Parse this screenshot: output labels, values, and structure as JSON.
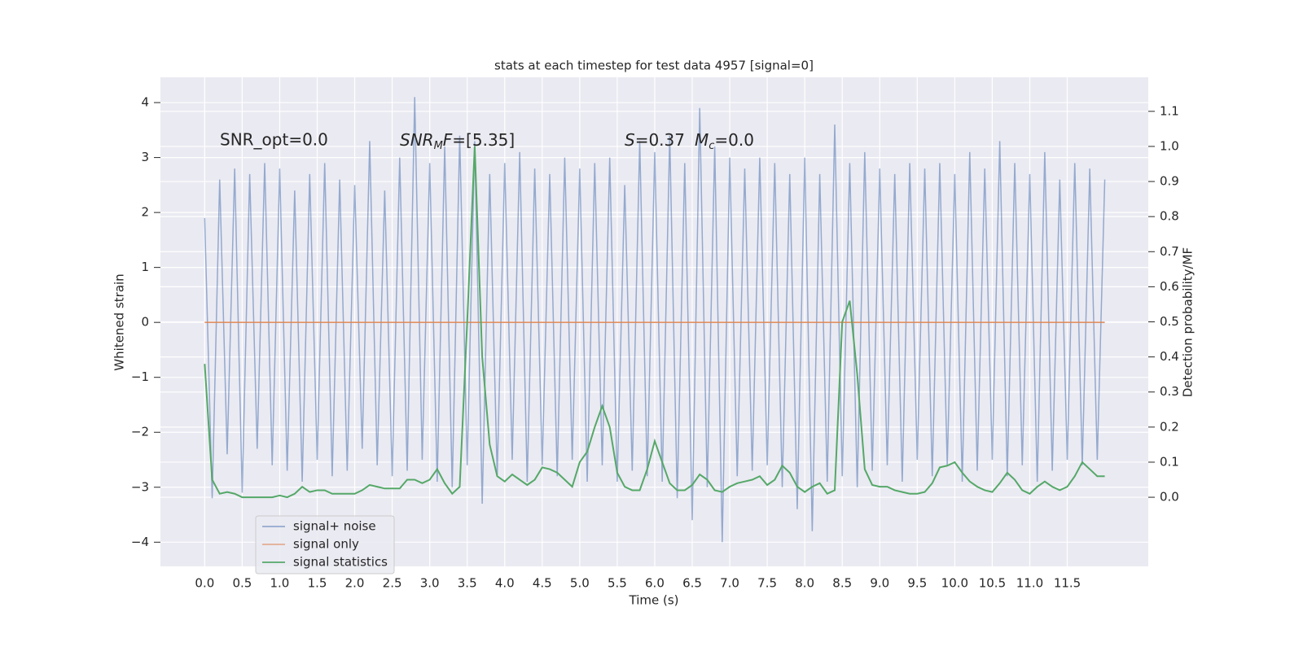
{
  "chart_data": {
    "type": "line",
    "title": "stats at each timestep for test data 4957 [signal=0]",
    "xlabel": "Time (s)",
    "ylabel": "Whitened strain",
    "y2label": "Detection probability/MF",
    "annotations": [
      [
        "SNR_opt=0.0"
      ],
      [
        "SNR",
        "M",
        "F",
        "=[5.35]"
      ],
      [
        "S",
        "=0.37",
        "M",
        "c",
        "=0.0"
      ]
    ],
    "x": [
      0.0,
      0.1,
      0.2,
      0.3,
      0.4,
      0.5,
      0.6,
      0.7,
      0.8,
      0.9,
      1.0,
      1.1,
      1.2,
      1.3,
      1.4,
      1.5,
      1.6,
      1.7,
      1.8,
      1.9,
      2.0,
      2.1,
      2.2,
      2.3,
      2.4,
      2.5,
      2.6,
      2.7,
      2.8,
      2.9,
      3.0,
      3.1,
      3.2,
      3.3,
      3.4,
      3.5,
      3.6,
      3.7,
      3.8,
      3.9,
      4.0,
      4.1,
      4.2,
      4.3,
      4.4,
      4.5,
      4.6,
      4.7,
      4.8,
      4.9,
      5.0,
      5.1,
      5.2,
      5.3,
      5.4,
      5.5,
      5.6,
      5.7,
      5.8,
      5.9,
      6.0,
      6.1,
      6.2,
      6.3,
      6.4,
      6.5,
      6.6,
      6.7,
      6.8,
      6.9,
      7.0,
      7.1,
      7.2,
      7.3,
      7.4,
      7.5,
      7.6,
      7.7,
      7.8,
      7.9,
      8.0,
      8.1,
      8.2,
      8.3,
      8.4,
      8.5,
      8.6,
      8.7,
      8.8,
      8.9,
      9.0,
      9.1,
      9.2,
      9.3,
      9.4,
      9.5,
      9.6,
      9.7,
      9.8,
      9.9,
      10.0,
      10.1,
      10.2,
      10.3,
      10.4,
      10.5,
      10.6,
      10.7,
      10.8,
      10.9,
      11.0,
      11.1,
      11.2,
      11.3,
      11.4,
      11.5,
      11.6,
      11.7,
      11.8,
      11.9,
      12.0
    ],
    "series": [
      {
        "name": "signal+ noise",
        "color": "#4c72b0",
        "values": [
          1.9,
          -3.2,
          2.6,
          -2.4,
          2.8,
          -3.1,
          2.7,
          -2.3,
          2.9,
          -2.6,
          2.8,
          -2.7,
          2.4,
          -2.9,
          2.7,
          -2.5,
          2.9,
          -2.8,
          2.6,
          -2.7,
          2.5,
          -2.3,
          3.3,
          -2.6,
          2.4,
          -2.8,
          3.0,
          -2.7,
          4.1,
          -2.5,
          2.9,
          -2.9,
          3.2,
          -3.0,
          3.4,
          -2.6,
          3.3,
          -3.3,
          2.7,
          -2.8,
          2.9,
          -2.5,
          3.1,
          -2.9,
          2.8,
          -2.6,
          2.7,
          -2.8,
          3.0,
          -2.5,
          2.8,
          -2.9,
          2.9,
          -2.6,
          3.0,
          -2.9,
          2.5,
          -2.7,
          3.3,
          -2.8,
          3.1,
          -2.9,
          3.4,
          -3.2,
          2.9,
          -3.6,
          3.9,
          -3.0,
          3.2,
          -4.0,
          3.0,
          -2.8,
          2.8,
          -2.7,
          3.0,
          -2.6,
          2.9,
          -3.0,
          2.7,
          -3.4,
          3.0,
          -3.8,
          2.7,
          -2.9,
          3.6,
          -2.8,
          2.9,
          -3.0,
          3.1,
          -2.7,
          2.8,
          -2.6,
          2.7,
          -2.9,
          2.9,
          -2.5,
          2.8,
          -2.8,
          2.9,
          -2.6,
          2.7,
          -2.9,
          3.1,
          -2.7,
          2.8,
          -2.5,
          3.3,
          -2.8,
          2.9,
          -2.6,
          2.7,
          -2.9,
          3.1,
          -2.7,
          2.6,
          -2.5,
          2.9,
          -2.6,
          2.8,
          -2.5,
          2.6
        ]
      },
      {
        "name": "signal only",
        "color": "#dd8452",
        "x": [
          0.0,
          12.0
        ],
        "values": [
          0,
          0
        ]
      },
      {
        "name": "signal statistics",
        "color": "#55a868",
        "axis": "y2",
        "values": [
          0.38,
          0.05,
          0.01,
          0.015,
          0.01,
          0.0,
          0.0,
          0.0,
          0.0,
          0.0,
          0.005,
          0.0,
          0.01,
          0.03,
          0.015,
          0.02,
          0.02,
          0.01,
          0.01,
          0.01,
          0.01,
          0.02,
          0.035,
          0.03,
          0.025,
          0.025,
          0.025,
          0.05,
          0.05,
          0.04,
          0.05,
          0.08,
          0.04,
          0.01,
          0.03,
          0.5,
          1.0,
          0.4,
          0.15,
          0.06,
          0.045,
          0.065,
          0.05,
          0.035,
          0.05,
          0.085,
          0.08,
          0.07,
          0.05,
          0.03,
          0.1,
          0.13,
          0.2,
          0.26,
          0.2,
          0.07,
          0.03,
          0.02,
          0.02,
          0.08,
          0.16,
          0.1,
          0.04,
          0.02,
          0.02,
          0.035,
          0.065,
          0.05,
          0.02,
          0.015,
          0.03,
          0.04,
          0.045,
          0.05,
          0.06,
          0.035,
          0.05,
          0.09,
          0.07,
          0.03,
          0.015,
          0.03,
          0.04,
          0.01,
          0.02,
          0.5,
          0.56,
          0.35,
          0.08,
          0.035,
          0.03,
          0.03,
          0.02,
          0.015,
          0.01,
          0.01,
          0.015,
          0.04,
          0.085,
          0.09,
          0.1,
          0.07,
          0.045,
          0.03,
          0.02,
          0.015,
          0.04,
          0.07,
          0.05,
          0.02,
          0.01,
          0.03,
          0.045,
          0.03,
          0.02,
          0.03,
          0.06,
          0.1,
          0.08,
          0.06,
          0.06
        ]
      }
    ],
    "xlim": [
      -0.59,
      12.58
    ],
    "ylim": [
      -4.44,
      4.46
    ],
    "y2lim": [
      -0.197,
      1.197
    ],
    "xticks": [
      {
        "value": 0,
        "label": "0.0"
      },
      0.5,
      {
        "value": 1,
        "label": "1.0"
      },
      1.5,
      {
        "value": 2,
        "label": "2.0"
      },
      2.5,
      {
        "value": 3,
        "label": "3.0"
      },
      3.5,
      {
        "value": 4,
        "label": "4.0"
      },
      4.5,
      {
        "value": 5,
        "label": "5.0"
      },
      5.5,
      {
        "value": 6,
        "label": "6.0"
      },
      6.5,
      {
        "value": 7,
        "label": "7.0"
      },
      7.5,
      {
        "value": 8,
        "label": "8.0"
      },
      8.5,
      {
        "value": 9,
        "label": "9.0"
      },
      9.5,
      {
        "value": 10,
        "label": "10.0"
      },
      10.5,
      {
        "value": 11,
        "label": "11.0"
      },
      11.5
    ],
    "yticks": [
      {
        "value": -4,
        "label": "−4"
      },
      {
        "value": -3,
        "label": "−3"
      },
      {
        "value": -2,
        "label": "−2"
      },
      {
        "value": -1,
        "label": "−1"
      },
      0,
      1,
      2,
      3,
      4
    ],
    "y2ticks": [
      {
        "value": 0,
        "label": "0.0"
      },
      0.1,
      0.2,
      0.3,
      0.4,
      0.5,
      0.6,
      0.7,
      0.8,
      0.9,
      {
        "value": 1,
        "label": "1.0"
      },
      1.1
    ],
    "grid": true,
    "legend": "lower left"
  }
}
